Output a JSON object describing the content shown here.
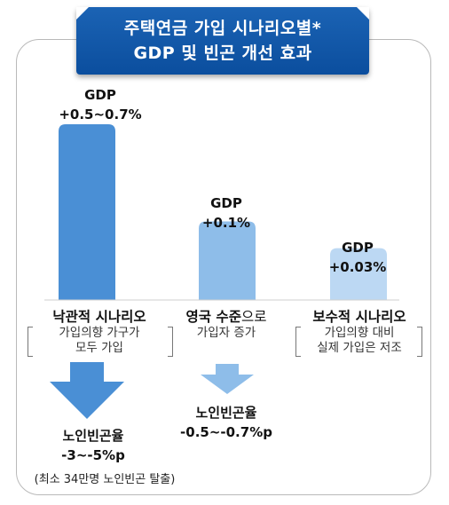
{
  "title": {
    "line1": "주택연금 가입 시나리오별*",
    "line2": "GDP 및 빈곤 개선 효과"
  },
  "chart_data": {
    "type": "bar",
    "title": "주택연금 가입 시나리오별* GDP 및 빈곤 개선 효과",
    "categories": [
      "낙관적 시나리오",
      "영국 수준으로 가입자 증가",
      "보수적 시나리오"
    ],
    "series": [
      {
        "values": [
          0.7,
          0.1,
          0.03
        ]
      }
    ],
    "bar_labels": [
      {
        "line1": "GDP",
        "line2": "+0.5~0.7%"
      },
      {
        "line1": "GDP",
        "line2": "+0.1%"
      },
      {
        "line1": "GDP",
        "line2": "+0.03%"
      }
    ],
    "bar_colors": [
      "#4a8fd5",
      "#8ebde9",
      "#bcd8f3"
    ]
  },
  "scenarios": [
    {
      "title": "낙관적 시나리오",
      "title_suffix": "",
      "desc1": "가입의향 가구가",
      "desc2": "모두 가입"
    },
    {
      "title": "영국 수준",
      "title_suffix": "으로",
      "desc1": "가입자 증가",
      "desc2": ""
    },
    {
      "title": "보수적 시나리오",
      "title_suffix": "",
      "desc1": "가입의향 대비",
      "desc2": "실제 가입은 저조"
    }
  ],
  "poverty": [
    {
      "label": "노인빈곤율",
      "value": "-3~-5%p",
      "note": "(최소 34만명 노인빈곤 탈출)",
      "arrow_color": "#4a8fd5"
    },
    {
      "label": "노인빈곤율",
      "value": "-0.5~-0.7%p",
      "note": "",
      "arrow_color": "#8ebde9"
    }
  ]
}
